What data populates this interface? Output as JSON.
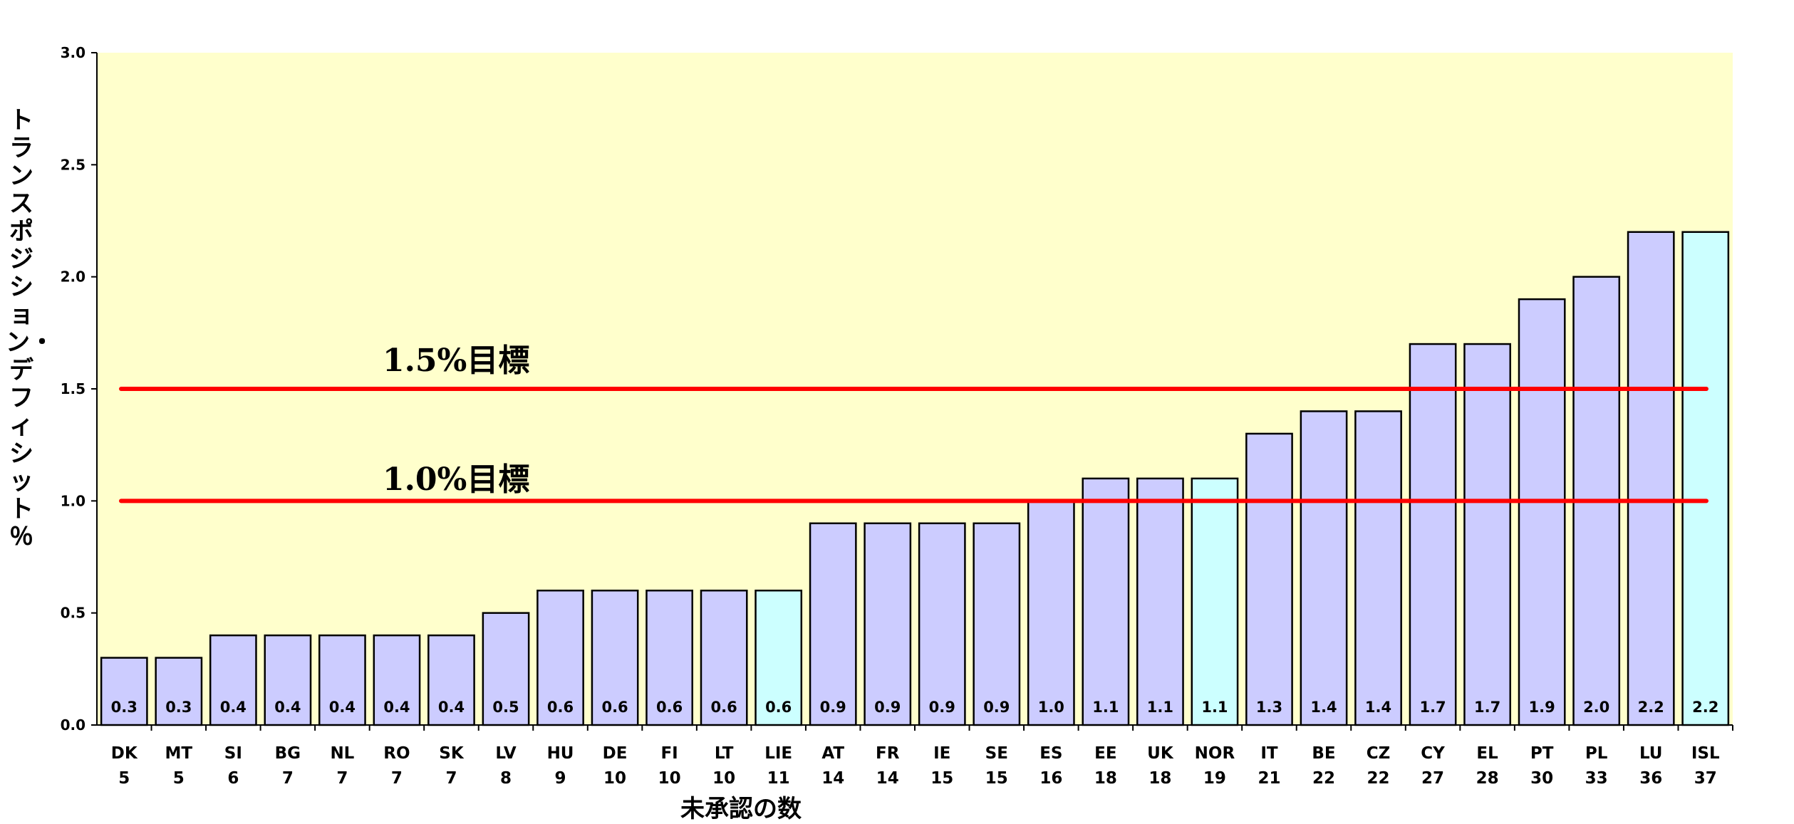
{
  "chart_data": {
    "type": "bar",
    "title": "",
    "ylabel": "トランスポジション・デフィシット　％",
    "xlabel": "未承認の数",
    "ylim": [
      0,
      3.0
    ],
    "yticks": [
      "0.0",
      "0.5",
      "1.0",
      "1.5",
      "2.0",
      "2.5",
      "3.0"
    ],
    "grid": false,
    "plot_background": "#ffffcc",
    "bar_color": "#ccccff",
    "highlight_bar_color": "#ccffff",
    "target_line_color": "#ff0000",
    "categories": [
      "DK",
      "MT",
      "SI",
      "BG",
      "NL",
      "RO",
      "SK",
      "LV",
      "HU",
      "DE",
      "FI",
      "LT",
      "LIE",
      "AT",
      "FR",
      "IE",
      "SE",
      "ES",
      "EE",
      "UK",
      "NOR",
      "IT",
      "BE",
      "CZ",
      "CY",
      "EL",
      "PT",
      "PL",
      "LU",
      "ISL"
    ],
    "counts": [
      "5",
      "5",
      "6",
      "7",
      "7",
      "7",
      "7",
      "8",
      "9",
      "10",
      "10",
      "10",
      "11",
      "14",
      "14",
      "15",
      "15",
      "16",
      "18",
      "18",
      "19",
      "21",
      "22",
      "22",
      "27",
      "28",
      "30",
      "33",
      "36",
      "37"
    ],
    "values": [
      0.3,
      0.3,
      0.4,
      0.4,
      0.4,
      0.4,
      0.4,
      0.5,
      0.6,
      0.6,
      0.6,
      0.6,
      0.6,
      0.9,
      0.9,
      0.9,
      0.9,
      1.0,
      1.1,
      1.1,
      1.1,
      1.3,
      1.4,
      1.4,
      1.7,
      1.7,
      1.9,
      2.0,
      2.2,
      2.2
    ],
    "value_labels": [
      "0.3",
      "0.3",
      "0.4",
      "0.4",
      "0.4",
      "0.4",
      "0.4",
      "0.5",
      "0.6",
      "0.6",
      "0.6",
      "0.6",
      "0.6",
      "0.9",
      "0.9",
      "0.9",
      "0.9",
      "1.0",
      "1.1",
      "1.1",
      "1.1",
      "1.3",
      "1.4",
      "1.4",
      "1.7",
      "1.7",
      "1.9",
      "2.0",
      "2.2",
      "2.2"
    ],
    "highlighted": [
      "LIE",
      "NOR",
      "ISL"
    ],
    "target_lines": [
      {
        "value": 1.5,
        "label": "1.5%目標"
      },
      {
        "value": 1.0,
        "label": "1.0%目標"
      }
    ]
  }
}
